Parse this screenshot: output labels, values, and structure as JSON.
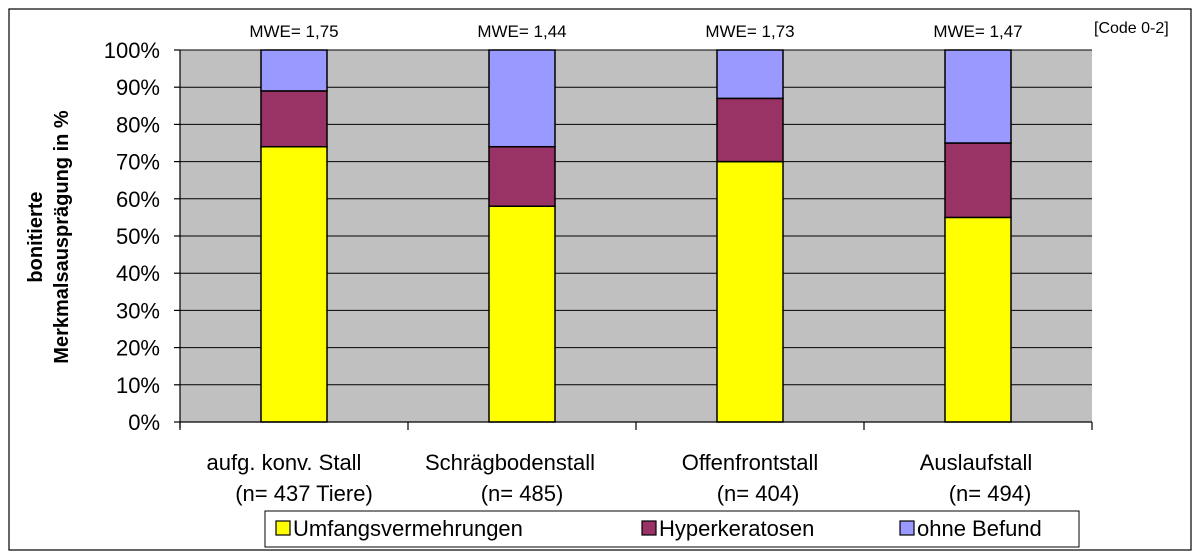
{
  "chart_data": {
    "type": "bar",
    "stacked": true,
    "title": "",
    "code_label": "[Code 0-2]",
    "ylabel_line1": "bonitierte",
    "ylabel_line2": "Merkmalsausprägung in %",
    "ylim": [
      0,
      100
    ],
    "y_ticks": [
      "0%",
      "10%",
      "20%",
      "30%",
      "40%",
      "50%",
      "60%",
      "70%",
      "80%",
      "90%",
      "100%"
    ],
    "grid": true,
    "legend_position": "bottom",
    "categories": [
      {
        "label": "aufg. konv. Stall",
        "n_label": "(n= 437 Tiere)",
        "mwe_label": "MWE= 1,75"
      },
      {
        "label": "Schrägbodenstall",
        "n_label": "(n= 485)",
        "mwe_label": "MWE= 1,44"
      },
      {
        "label": "Offenfrontstall",
        "n_label": "(n= 404)",
        "mwe_label": "MWE= 1,73"
      },
      {
        "label": "Auslaufstall",
        "n_label": "(n= 494)",
        "mwe_label": "MWE= 1,47"
      }
    ],
    "series": [
      {
        "name": "Umfangsvermehrungen",
        "color": "#ffff00",
        "values": [
          74,
          58,
          70,
          55
        ]
      },
      {
        "name": "Hyperkeratosen",
        "color": "#993366",
        "values": [
          15,
          16,
          17,
          20
        ]
      },
      {
        "name": "ohne Befund",
        "color": "#9999ff",
        "values": [
          11,
          26,
          13,
          25
        ]
      }
    ],
    "colors": {
      "plot_background": "#c0c0c0",
      "gridline": "#000000"
    }
  }
}
